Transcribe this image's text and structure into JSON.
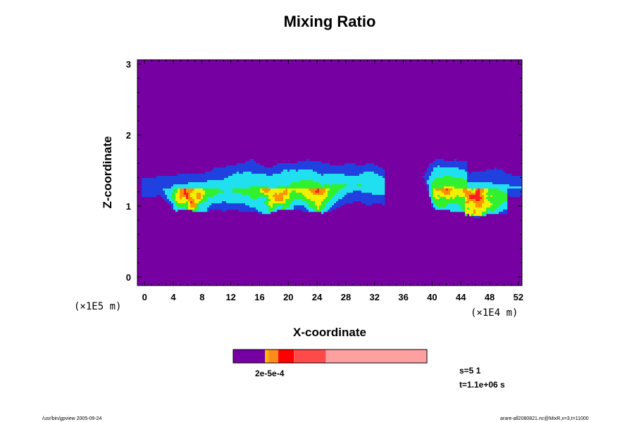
{
  "chart_data": {
    "type": "heatmap",
    "title": "Mixing Ratio",
    "xlabel": "X-coordinate",
    "ylabel": "Z-coordinate",
    "x_scale_label": "(×1E4 m)",
    "y_scale_label": "(×1E5 m)",
    "xlim": [
      -1,
      52.5
    ],
    "ylim": [
      -0.12,
      3.06
    ],
    "x_ticks": [
      "0",
      "4",
      "8",
      "12",
      "16",
      "20",
      "24",
      "28",
      "32",
      "36",
      "40",
      "44",
      "48",
      "52"
    ],
    "y_ticks": [
      "0",
      "1",
      "2",
      "3"
    ],
    "background_color": "#7700a3",
    "colors": {
      "blue": "#2040e0",
      "cyan": "#20e0f0",
      "green": "#30f030",
      "yellow": "#f0f000",
      "orange": "#ff9000",
      "red": "#ff2020",
      "pink": "#ff9a9a"
    },
    "colorbar": {
      "segments": [
        {
          "color": "#7700a3",
          "fraction": 0.165
        },
        {
          "color": "#ffd000",
          "fraction": 0.006
        },
        {
          "color": "#ffb000",
          "fraction": 0.012
        },
        {
          "color": "#ff8c1a",
          "fraction": 0.05
        },
        {
          "color": "#ff0000",
          "fraction": 0.08
        },
        {
          "color": "#ff4a4a",
          "fraction": 0.165
        },
        {
          "color": "#ffa0a0",
          "fraction": 0.522
        }
      ],
      "labels_overlapping": "2e-5e-4"
    },
    "info": {
      "s": "s=5 1",
      "t": "t=1.1e+06 s"
    }
  },
  "footer": {
    "left": "/usr/bin/gpview 2005-09-24",
    "right": "arare-all2080821.nc@MixR,x=3,t=11000"
  }
}
